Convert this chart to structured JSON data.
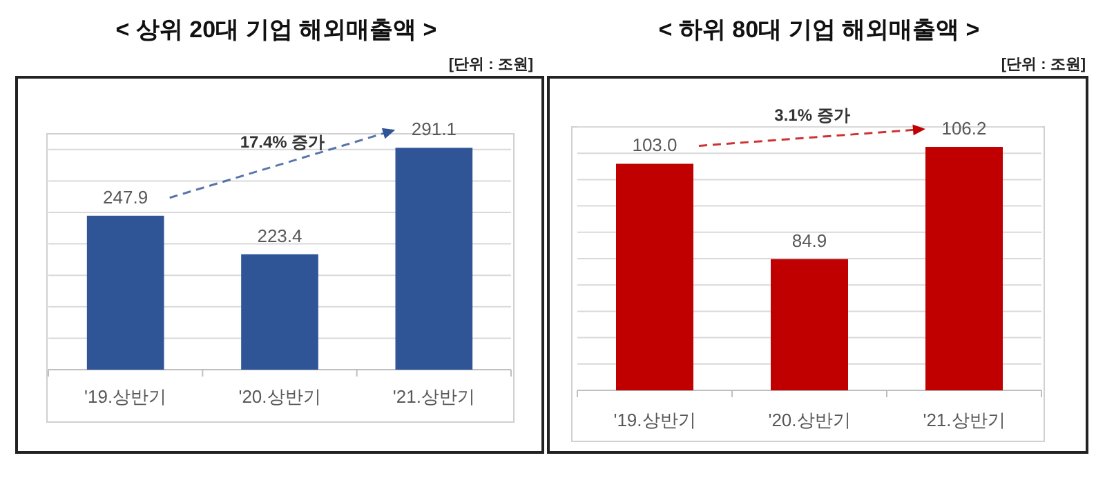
{
  "chart_data": [
    {
      "type": "bar",
      "title": "< 상위 20대 기업 해외매출액 >",
      "annotations": [
        "[단위 : 조원]",
        "17.4% 증가"
      ],
      "categories": [
        "'19.상반기",
        "'20.상반기",
        "'21.상반기"
      ],
      "values": [
        247.9,
        223.4,
        291.1
      ],
      "value_labels": [
        "247.9",
        "223.4",
        "291.1"
      ],
      "color": "#2f5597",
      "ylim": [
        150,
        300
      ],
      "yticks": [
        {
          "value": 150,
          "label": null
        },
        {
          "value": 170,
          "label": null
        },
        {
          "value": 190,
          "label": null
        },
        {
          "value": 210,
          "label": null
        },
        {
          "value": 230,
          "label": null
        },
        {
          "value": 250,
          "label": null
        },
        {
          "value": 270,
          "label": null
        },
        {
          "value": 290,
          "label": null
        }
      ],
      "grid": "y",
      "tick_labels": "x"
    },
    {
      "type": "bar",
      "title": "< 하위 80대 기업 해외매출액 >",
      "annotations": [
        "[단위 : 조원]",
        "3.1% 증가"
      ],
      "categories": [
        "'19.상반기",
        "'20.상반기",
        "'21.상반기"
      ],
      "values": [
        103.0,
        84.9,
        106.2
      ],
      "value_labels": [
        "103.0",
        "84.9",
        "106.2"
      ],
      "color": "#c00000",
      "ylim": [
        60,
        110
      ],
      "yticks": [
        {
          "value": 60,
          "label": null
        },
        {
          "value": 65,
          "label": null
        },
        {
          "value": 70,
          "label": null
        },
        {
          "value": 75,
          "label": null
        },
        {
          "value": 80,
          "label": null
        },
        {
          "value": 85,
          "label": null
        },
        {
          "value": 90,
          "label": null
        },
        {
          "value": 95,
          "label": null
        },
        {
          "value": 100,
          "label": null
        },
        {
          "value": 105,
          "label": null
        },
        {
          "value": 110,
          "label": null
        }
      ],
      "grid": "y",
      "tick_labels": "x"
    }
  ]
}
